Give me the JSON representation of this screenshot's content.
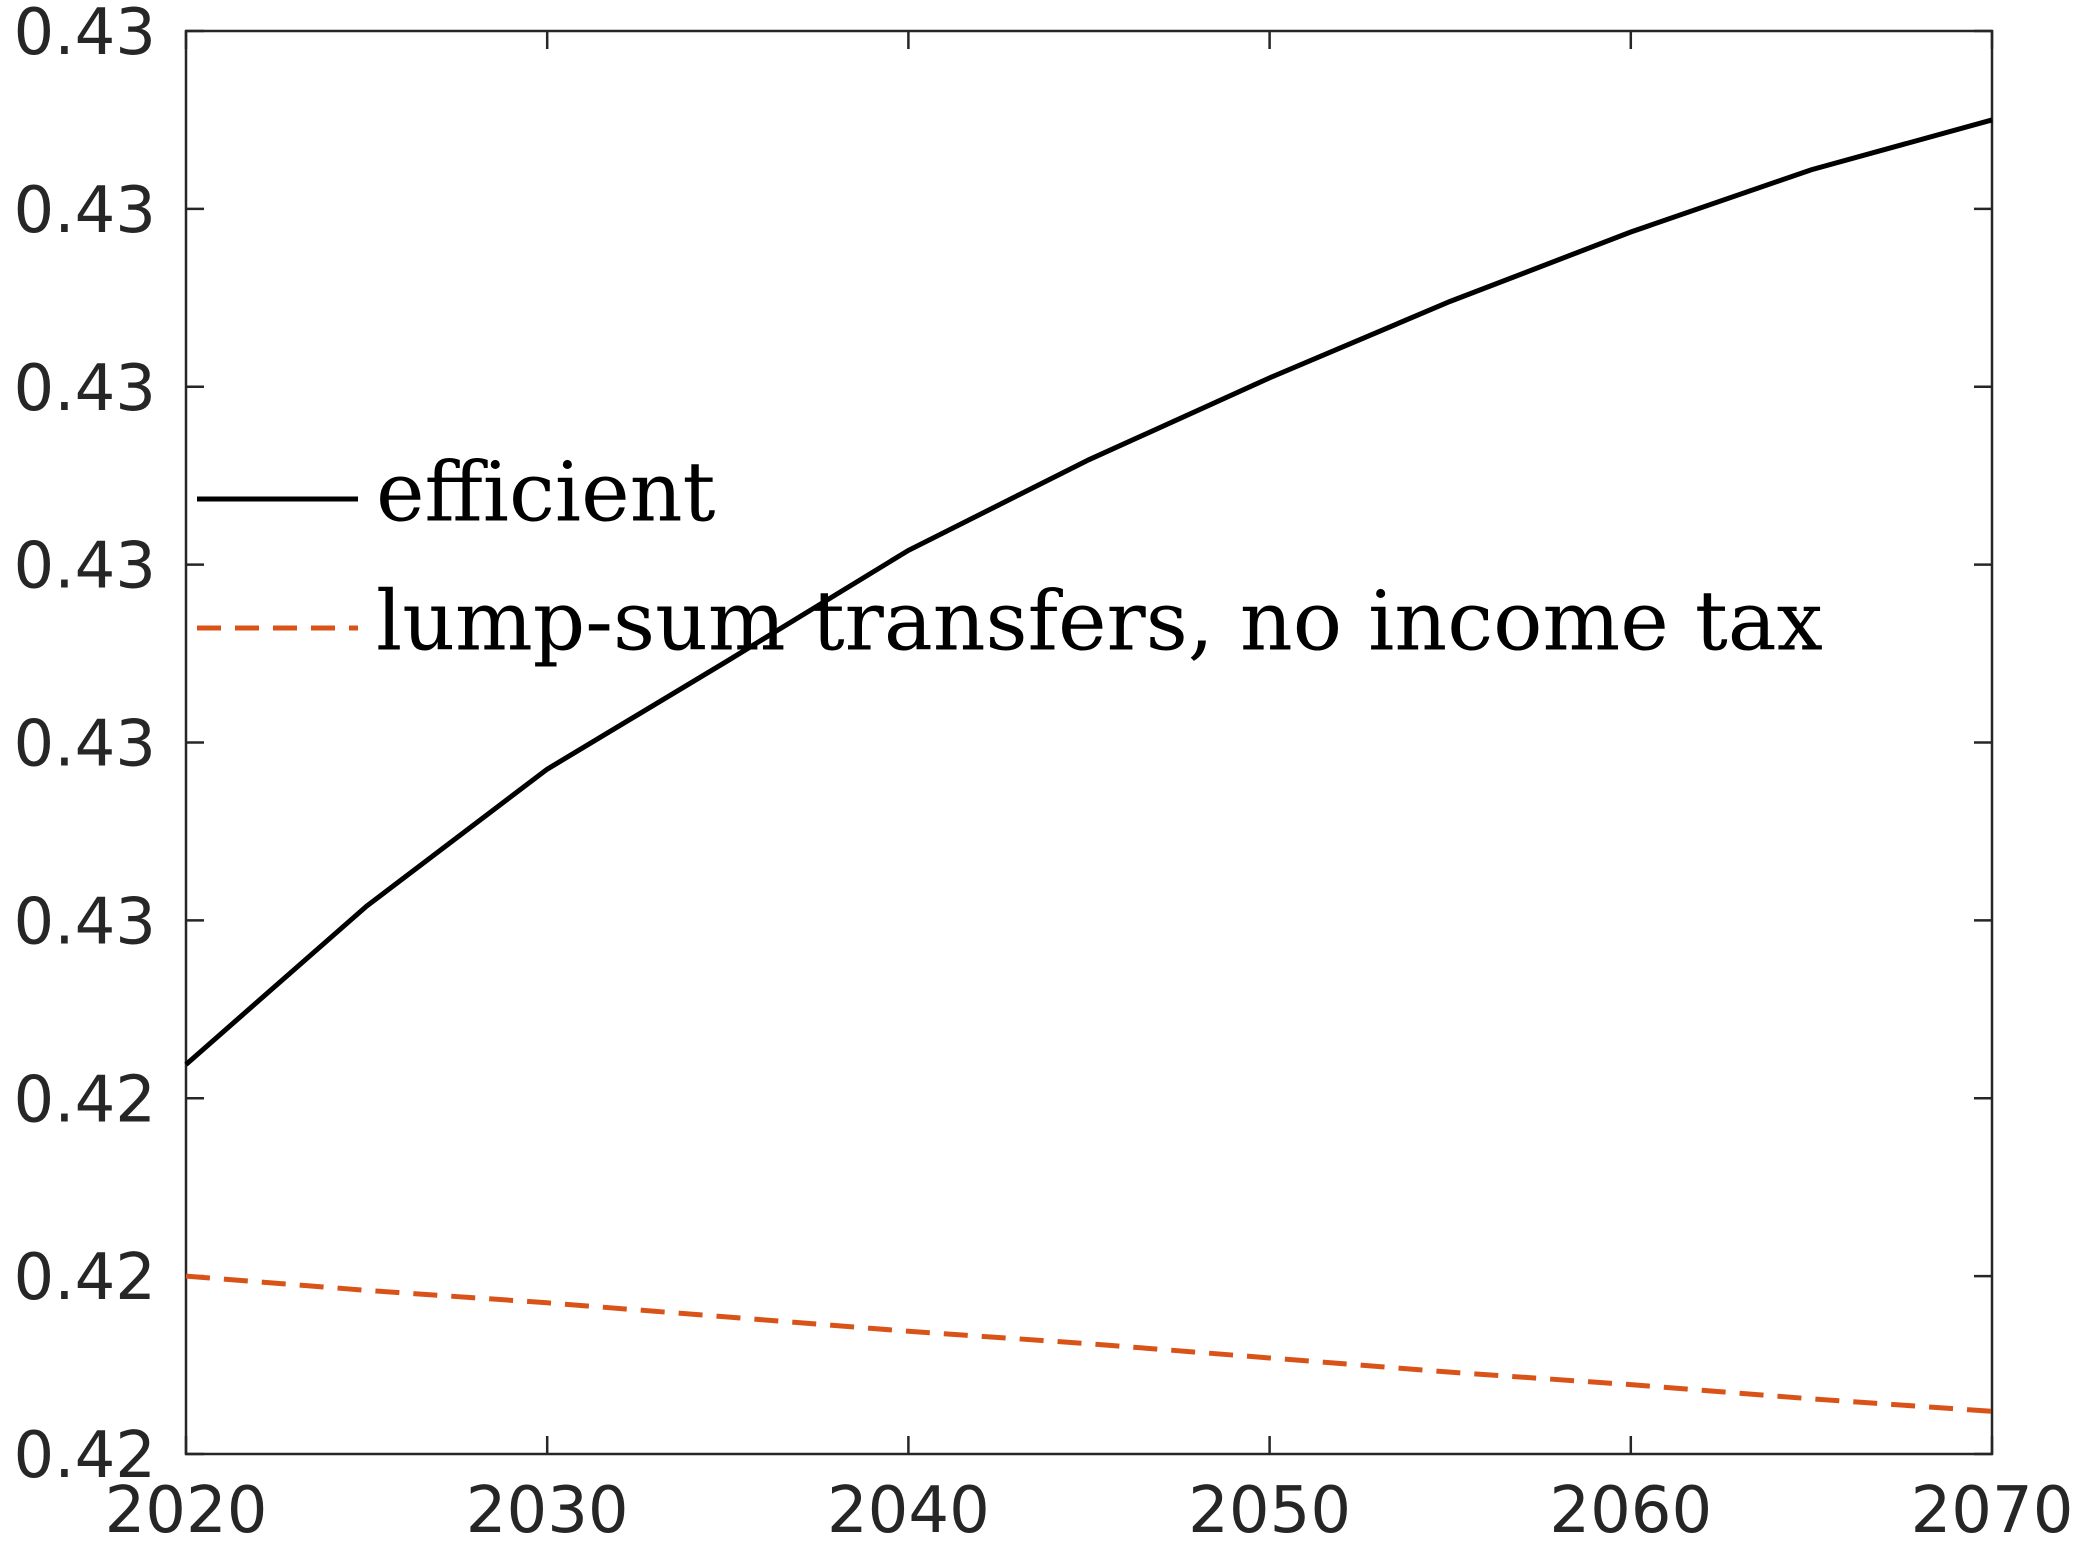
{
  "chart_data": {
    "type": "line",
    "x": [
      2020,
      2025,
      2030,
      2035,
      2040,
      2045,
      2050,
      2055,
      2060,
      2065,
      2070
    ],
    "series": [
      {
        "name": "efficient",
        "color": "#000000",
        "dash": "solid",
        "values": [
          0.42419,
          0.42508,
          0.42585,
          0.42646,
          0.42708,
          0.42759,
          0.42805,
          0.42848,
          0.42887,
          0.42922,
          0.4295
        ]
      },
      {
        "name": "lump-sum transfers, no income tax",
        "color": "#d95319",
        "dash": "dashed",
        "values": [
          0.423,
          0.42292,
          0.42285,
          0.42277,
          0.42269,
          0.42262,
          0.42254,
          0.42246,
          0.42239,
          0.42231,
          0.42224
        ]
      }
    ],
    "xlim": [
      2020,
      2070
    ],
    "xticks": [
      2020,
      2030,
      2040,
      2050,
      2060,
      2070
    ],
    "ylim": [
      0.422,
      0.43
    ],
    "yticks": [
      {
        "value": 0.422,
        "label": "0.42"
      },
      {
        "value": 0.423,
        "label": "0.42"
      },
      {
        "value": 0.424,
        "label": "0.42"
      },
      {
        "value": 0.425,
        "label": "0.43"
      },
      {
        "value": 0.426,
        "label": "0.43"
      },
      {
        "value": 0.427,
        "label": "0.43"
      },
      {
        "value": 0.428,
        "label": "0.43"
      },
      {
        "value": 0.429,
        "label": "0.43"
      },
      {
        "value": 0.43,
        "label": "0.43"
      }
    ],
    "grid": false,
    "legend": "upper left"
  }
}
